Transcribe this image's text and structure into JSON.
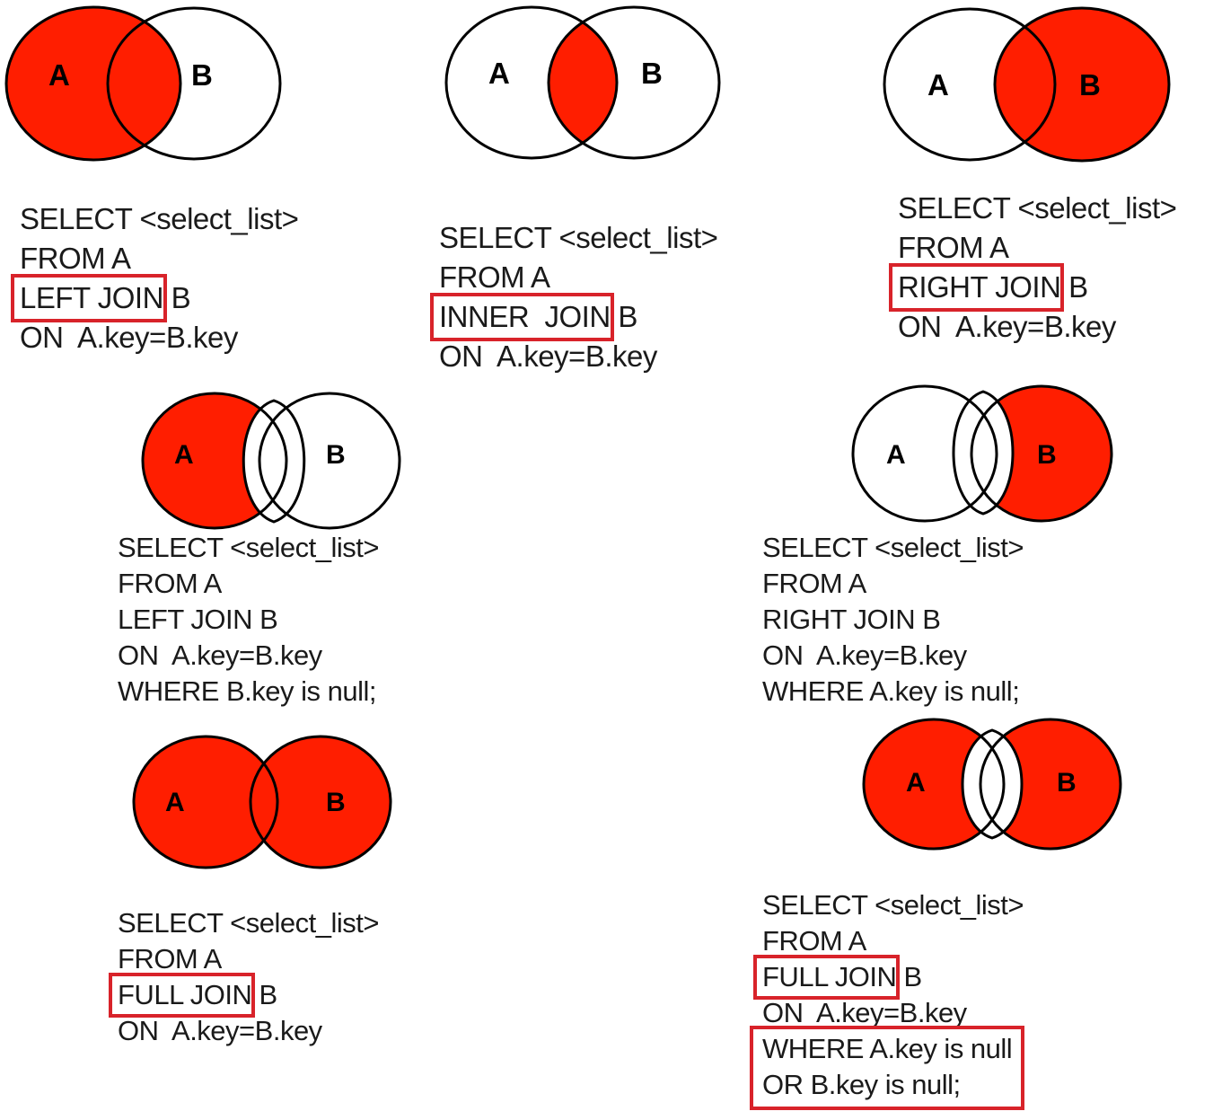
{
  "colors": {
    "fill": "#ff1e00",
    "outline": "#000000",
    "highlight": "#d8232a"
  },
  "labels": {
    "a": "A",
    "b": "B"
  },
  "panels": [
    {
      "id": "left-join",
      "select": "SELECT <select_list>",
      "from": "FROM A",
      "join": "LEFT JOIN",
      "join_table": " B",
      "on": "ON  A.key=B.key"
    },
    {
      "id": "inner-join",
      "select": "SELECT <select_list>",
      "from": "FROM A",
      "join": "INNER  JOIN",
      "join_table": " B",
      "on": "ON  A.key=B.key"
    },
    {
      "id": "right-join",
      "select": "SELECT <select_list>",
      "from": "FROM A",
      "join": "RIGHT JOIN",
      "join_table": " B",
      "on": "ON  A.key=B.key"
    },
    {
      "id": "left-exclusive",
      "select": "SELECT <select_list>",
      "from": "FROM A",
      "join": "LEFT JOIN B",
      "on": "ON  A.key=B.key",
      "where": "WHERE B.key is null;"
    },
    {
      "id": "right-exclusive",
      "select": "SELECT <select_list>",
      "from": "FROM A",
      "join": "RIGHT JOIN B",
      "on": "ON  A.key=B.key",
      "where": "WHERE A.key is null;"
    },
    {
      "id": "full-join",
      "select": "SELECT <select_list>",
      "from": "FROM A",
      "join": "FULL JOIN",
      "join_table": " B",
      "on": "ON  A.key=B.key"
    },
    {
      "id": "full-exclusive",
      "select": "SELECT <select_list>",
      "from": "FROM A",
      "join": "FULL JOIN",
      "join_table": " B",
      "on": "ON  A.key=B.key",
      "where1": "WHERE A.key is null",
      "where2": "OR B.key is null;"
    }
  ]
}
